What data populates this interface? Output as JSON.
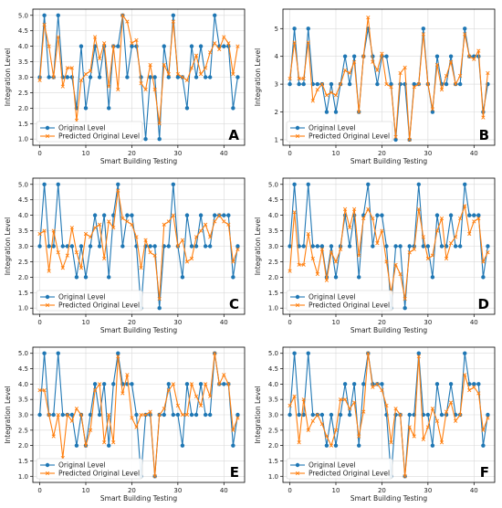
{
  "colors": {
    "original": "#1f77b4",
    "predicted": "#ff7f0e",
    "grid": "#d9d9d9"
  },
  "chart_data": [
    {
      "type": "line",
      "panel_label": "A",
      "xlabel": "Smart Building Testing",
      "ylabel": "Integration Level",
      "xlim": [
        -1.5,
        44.5
      ],
      "ylim": [
        0.8,
        5.2
      ],
      "xticks": [
        0,
        10,
        20,
        30,
        40
      ],
      "yticks": [
        1.0,
        1.5,
        2.0,
        2.5,
        3.0,
        3.5,
        4.0,
        4.5,
        5.0
      ],
      "ytick_format": 1,
      "grid": true,
      "legend_position": "lower-left",
      "series": [
        {
          "name": "Original Level",
          "marker": "circle",
          "values": [
            3,
            5,
            3,
            3,
            5,
            3,
            3,
            3,
            2,
            4,
            2,
            3,
            4,
            3,
            4,
            2,
            4,
            4,
            5,
            3,
            4,
            4,
            3,
            1,
            3,
            3,
            1,
            4,
            3,
            5,
            3,
            3,
            2,
            4,
            3,
            4,
            3,
            3,
            5,
            4,
            4,
            4,
            2,
            3
          ]
        },
        {
          "name": "Predicted Original Level",
          "marker": "x",
          "values": [
            2.9,
            4.7,
            4.0,
            3.0,
            4.3,
            2.7,
            3.3,
            3.3,
            1.6,
            2.9,
            3.1,
            3.2,
            4.3,
            3.6,
            4.1,
            2.7,
            4.0,
            2.6,
            5.0,
            4.8,
            4.1,
            4.2,
            2.8,
            2.6,
            3.4,
            2.6,
            1.5,
            3.4,
            3.1,
            4.8,
            3.1,
            3.0,
            2.9,
            3.3,
            3.7,
            3.1,
            3.3,
            3.8,
            4.1,
            3.9,
            4.3,
            4.1,
            3.1,
            4.0
          ]
        }
      ]
    },
    {
      "type": "line",
      "panel_label": "B",
      "xlabel": "Smart Building Testing",
      "ylabel": "Integration Level",
      "xlim": [
        -1.5,
        44.5
      ],
      "ylim": [
        0.8,
        5.7
      ],
      "xticks": [
        0,
        10,
        20,
        30,
        40
      ],
      "yticks": [
        1,
        2,
        3,
        4,
        5
      ],
      "ytick_format": 0,
      "grid": true,
      "legend_position": "lower-left",
      "series": [
        {
          "name": "Original Level",
          "marker": "circle",
          "values": [
            3,
            5,
            3,
            3,
            5,
            3,
            3,
            3,
            2,
            3,
            2,
            3,
            4,
            3,
            4,
            2,
            4,
            5,
            4,
            3,
            4,
            4,
            3,
            1,
            3,
            3,
            1,
            3,
            3,
            5,
            3,
            2,
            4,
            3,
            3,
            4,
            3,
            3,
            5,
            4,
            4,
            4,
            2,
            3
          ]
        },
        {
          "name": "Predicted Original Level",
          "marker": "x",
          "values": [
            3.2,
            4.5,
            3.2,
            3.2,
            4.5,
            2.4,
            2.8,
            3.0,
            2.6,
            2.7,
            2.6,
            3.0,
            3.5,
            3.4,
            3.8,
            2.0,
            4.0,
            5.4,
            3.8,
            3.5,
            4.1,
            3.0,
            2.9,
            1.1,
            3.4,
            3.6,
            1.0,
            2.9,
            3.0,
            4.8,
            3.0,
            2.1,
            3.7,
            2.8,
            3.3,
            3.8,
            3.0,
            3.3,
            4.8,
            4.0,
            3.9,
            4.2,
            1.8,
            3.4
          ]
        }
      ]
    },
    {
      "type": "line",
      "panel_label": "C",
      "xlabel": "Smart Building Testing",
      "ylabel": "Integration Level",
      "xlim": [
        -1.5,
        44.5
      ],
      "ylim": [
        0.8,
        5.2
      ],
      "xticks": [
        0,
        10,
        20,
        30,
        40
      ],
      "yticks": [
        1.0,
        1.5,
        2.0,
        2.5,
        3.0,
        3.5,
        4.0,
        4.5,
        5.0
      ],
      "ytick_format": 1,
      "grid": true,
      "legend_position": "lower-left",
      "series": [
        {
          "name": "Original Level",
          "marker": "circle",
          "values": [
            3,
            5,
            3,
            3,
            5,
            3,
            3,
            3,
            2,
            3,
            2,
            3,
            4,
            3,
            4,
            2,
            4,
            5,
            3,
            4,
            4,
            3,
            1,
            3,
            3,
            3,
            1,
            3,
            3,
            5,
            3,
            2,
            4,
            3,
            3,
            4,
            3,
            3,
            4,
            4,
            4,
            4,
            2,
            3
          ]
        },
        {
          "name": "Predicted Original Level",
          "marker": "x",
          "values": [
            3.4,
            3.5,
            2.2,
            3.5,
            2.8,
            2.3,
            2.7,
            3.6,
            2.8,
            2.3,
            3.4,
            3.3,
            3.6,
            3.7,
            2.6,
            3.8,
            3.6,
            4.8,
            3.9,
            3.8,
            3.7,
            3.3,
            2.3,
            3.2,
            2.8,
            2.7,
            1.3,
            3.7,
            3.8,
            4.0,
            3.0,
            3.2,
            2.5,
            2.6,
            3.3,
            3.5,
            3.7,
            3.3,
            3.8,
            4.0,
            3.8,
            3.7,
            2.5,
            2.9
          ]
        }
      ]
    },
    {
      "type": "line",
      "panel_label": "D",
      "xlabel": "Smart Building Testing",
      "ylabel": "Integration Level",
      "xlim": [
        -1.5,
        44.5
      ],
      "ylim": [
        0.8,
        5.2
      ],
      "xticks": [
        0,
        10,
        20,
        30,
        40
      ],
      "yticks": [
        1.0,
        1.5,
        2.0,
        2.5,
        3.0,
        3.5,
        4.0,
        4.5,
        5.0
      ],
      "ytick_format": 1,
      "grid": true,
      "legend_position": "lower-left",
      "series": [
        {
          "name": "Original Level",
          "marker": "circle",
          "values": [
            3,
            5,
            3,
            3,
            5,
            3,
            3,
            3,
            2,
            3,
            2,
            3,
            4,
            3,
            4,
            2,
            4,
            5,
            3,
            4,
            4,
            3,
            1,
            3,
            3,
            1,
            3,
            3,
            5,
            3,
            3,
            2,
            4,
            3,
            3,
            4,
            3,
            3,
            5,
            4,
            4,
            4,
            2,
            3
          ]
        },
        {
          "name": "Predicted Original Level",
          "marker": "x",
          "values": [
            2.2,
            4.1,
            2.4,
            2.4,
            3.4,
            2.6,
            2.1,
            2.9,
            1.9,
            2.8,
            2.5,
            2.9,
            4.2,
            3.6,
            4.2,
            2.7,
            3.9,
            4.2,
            3.9,
            3.1,
            3.5,
            2.5,
            1.5,
            2.4,
            2.1,
            1.3,
            2.8,
            2.9,
            4.2,
            3.3,
            2.6,
            2.7,
            3.5,
            3.9,
            2.6,
            3.1,
            3.3,
            3.9,
            4.3,
            3.4,
            3.8,
            3.9,
            2.5,
            2.8
          ]
        }
      ]
    },
    {
      "type": "line",
      "panel_label": "E",
      "xlabel": "Smart Building Testing",
      "ylabel": "Integration Level",
      "xlim": [
        -1.5,
        44.5
      ],
      "ylim": [
        0.8,
        5.2
      ],
      "xticks": [
        0,
        10,
        20,
        30,
        40
      ],
      "yticks": [
        1.0,
        1.5,
        2.0,
        2.5,
        3.0,
        3.5,
        4.0,
        4.5,
        5.0
      ],
      "ytick_format": 1,
      "grid": true,
      "legend_position": "lower-left",
      "series": [
        {
          "name": "Original Level",
          "marker": "circle",
          "values": [
            3,
            5,
            3,
            3,
            5,
            3,
            3,
            3,
            2,
            3,
            2,
            3,
            4,
            3,
            4,
            2,
            4,
            5,
            4,
            4,
            4,
            3,
            1,
            3,
            3,
            1,
            3,
            3,
            4,
            3,
            3,
            2,
            4,
            3,
            3,
            4,
            3,
            3,
            5,
            4,
            4,
            4,
            2,
            3
          ]
        },
        {
          "name": "Predicted Original Level",
          "marker": "x",
          "values": [
            3.8,
            3.8,
            3.0,
            2.3,
            3.0,
            1.6,
            3.0,
            2.8,
            3.2,
            3.0,
            2.0,
            2.5,
            3.8,
            4.0,
            2.1,
            3.0,
            2.1,
            4.9,
            3.7,
            4.3,
            2.9,
            2.6,
            3.0,
            3.0,
            3.1,
            1.0,
            3.0,
            3.2,
            3.8,
            4.0,
            3.3,
            3.0,
            3.0,
            4.0,
            3.6,
            3.3,
            4.0,
            3.6,
            5.0,
            4.0,
            4.3,
            4.0,
            2.5,
            2.9
          ]
        }
      ]
    },
    {
      "type": "line",
      "panel_label": "F",
      "xlabel": "Smart Building Testing",
      "ylabel": "Integration Level",
      "xlim": [
        -1.5,
        44.5
      ],
      "ylim": [
        0.8,
        5.2
      ],
      "xticks": [
        0,
        10,
        20,
        30,
        40
      ],
      "yticks": [
        1.0,
        1.5,
        2.0,
        2.5,
        3.0,
        3.5,
        4.0,
        4.5,
        5.0
      ],
      "ytick_format": 1,
      "grid": true,
      "legend_position": "lower-left",
      "series": [
        {
          "name": "Original Level",
          "marker": "circle",
          "values": [
            3,
            5,
            3,
            3,
            5,
            3,
            3,
            3,
            2,
            3,
            2,
            3,
            4,
            3,
            4,
            2,
            4,
            5,
            4,
            4,
            4,
            3,
            1,
            3,
            3,
            1,
            3,
            3,
            5,
            3,
            3,
            2,
            4,
            3,
            3,
            4,
            3,
            3,
            5,
            4,
            4,
            4,
            2,
            3
          ]
        },
        {
          "name": "Predicted Original Level",
          "marker": "x",
          "values": [
            3.3,
            3.6,
            2.1,
            3.5,
            2.5,
            2.8,
            3.0,
            2.7,
            2.3,
            2.0,
            2.5,
            3.5,
            3.5,
            3.2,
            3.4,
            2.3,
            3.1,
            5.0,
            3.9,
            4.0,
            3.8,
            3.3,
            2.1,
            3.2,
            3.0,
            1.0,
            2.6,
            2.3,
            4.9,
            2.2,
            2.6,
            3.2,
            2.8,
            2.1,
            3.1,
            3.4,
            2.8,
            3.0,
            4.3,
            3.8,
            3.9,
            3.7,
            2.5,
            2.9
          ]
        }
      ]
    }
  ]
}
